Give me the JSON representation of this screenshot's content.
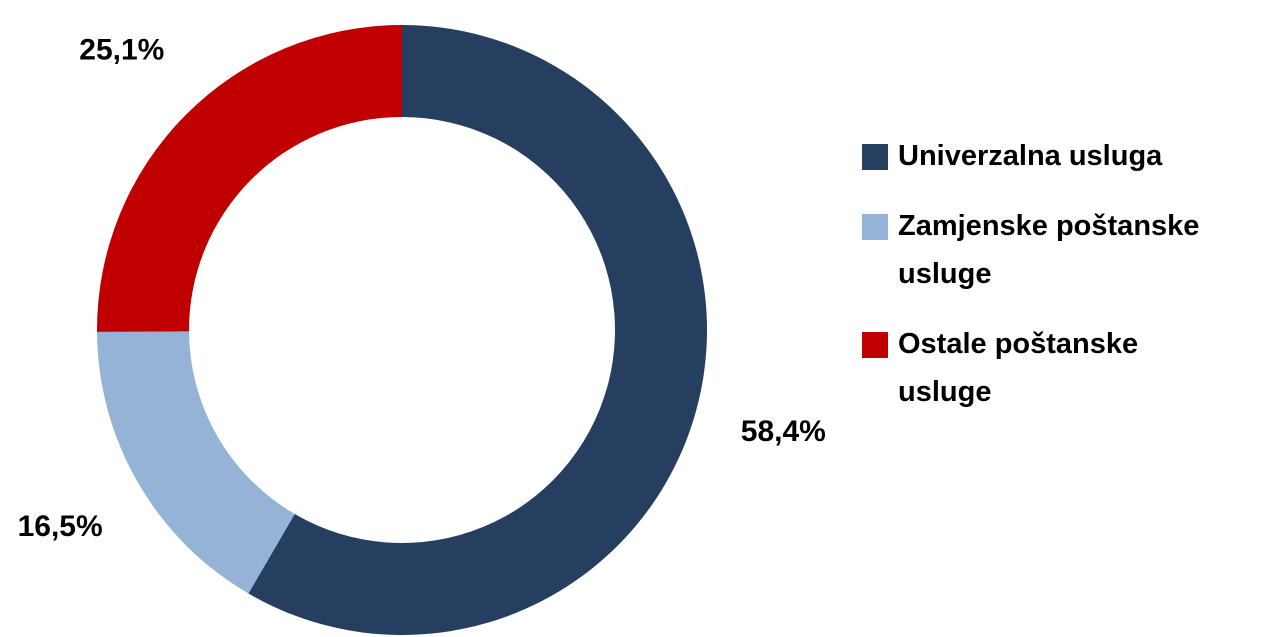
{
  "chart_data": {
    "type": "donut",
    "categories": [
      "Univerzalna usluga",
      "Zamjenske poštanske usluge",
      "Ostale poštanske usluge"
    ],
    "values": [
      58.4,
      16.5,
      25.1
    ],
    "value_labels": [
      "58,4%",
      "16,5%",
      "25,1%"
    ],
    "colors": [
      "#263f60",
      "#95b3d7",
      "#c00000"
    ],
    "legend": "right"
  }
}
